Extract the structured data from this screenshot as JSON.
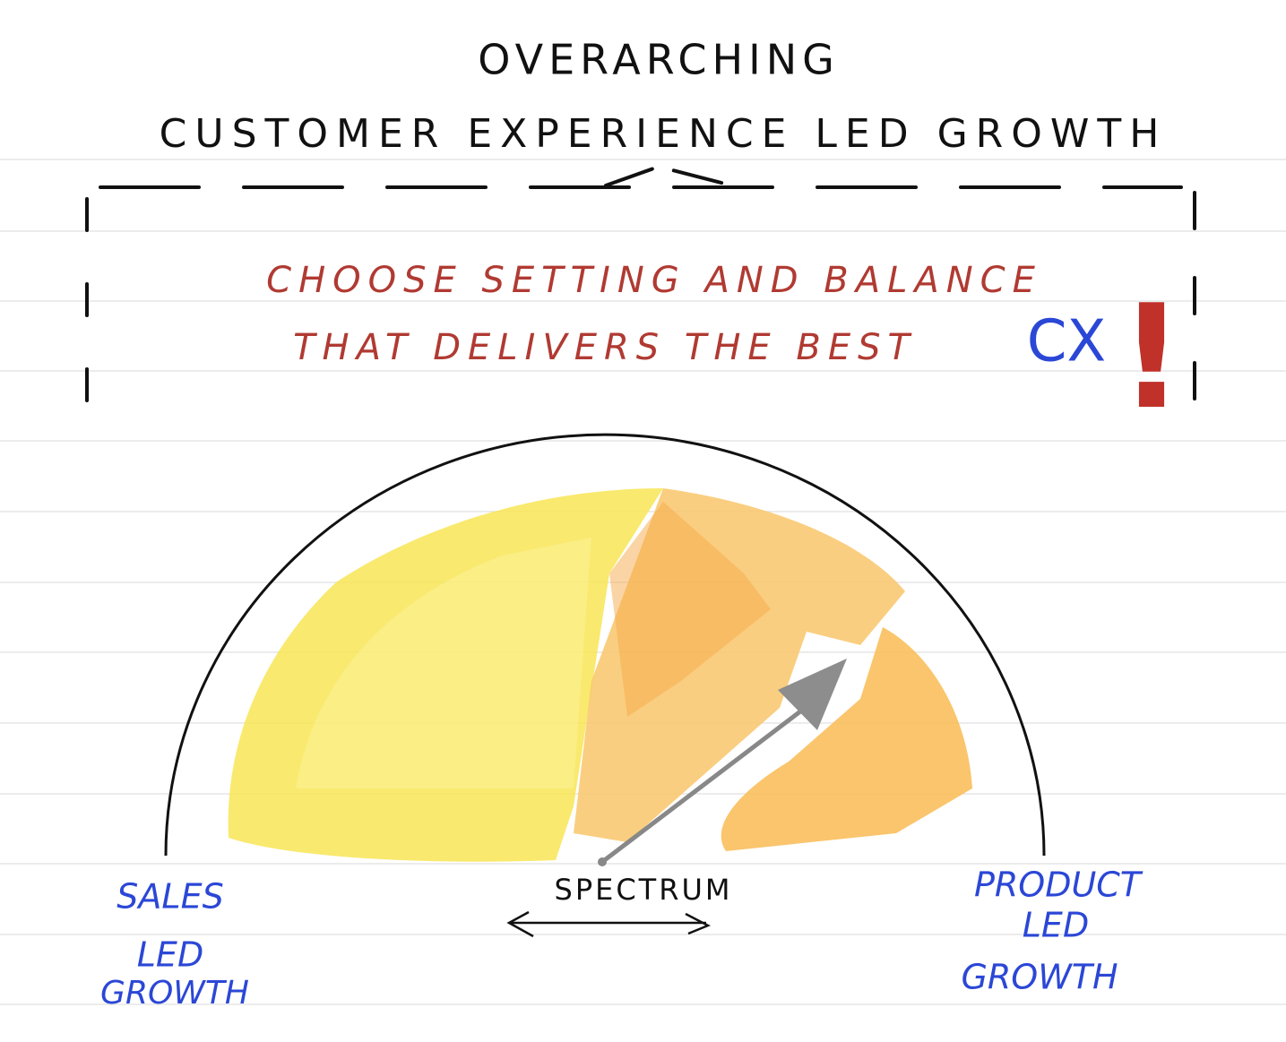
{
  "header": {
    "eyebrow": "OVERARCHING",
    "title": "CUSTOMER EXPERIENCE LED GROWTH"
  },
  "callout": {
    "lines": [
      "CHOOSE SETTING AND BALANCE",
      "THAT DELIVERS THE BEST"
    ],
    "emphasis": "CX",
    "mark": "!"
  },
  "gauge": {
    "left_label": [
      "SALES",
      "LED",
      "GROWTH"
    ],
    "center_label": "SPECTRUM",
    "right_label": [
      "PRODUCT",
      "LED",
      "GROWTH"
    ]
  }
}
